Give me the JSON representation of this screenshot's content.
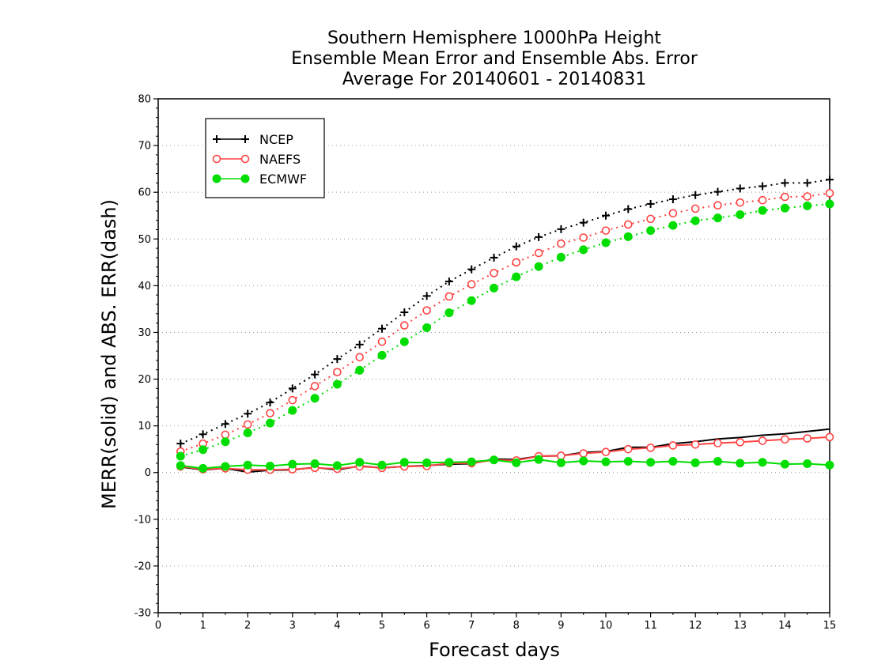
{
  "chart_data": {
    "type": "line",
    "title": [
      "Southern Hemisphere 1000hPa Height",
      "Ensemble Mean Error and Ensemble Abs. Error",
      "Average For 20140601 - 20140831"
    ],
    "xlabel": "Forecast days",
    "ylabel": "MERR(solid) and ABS. ERR(dash)",
    "xlim": [
      0,
      15
    ],
    "ylim": [
      -30,
      80
    ],
    "xticks": [
      0,
      1,
      2,
      3,
      4,
      5,
      6,
      7,
      8,
      9,
      10,
      11,
      12,
      13,
      14,
      15
    ],
    "yticks": [
      -30,
      -20,
      -10,
      0,
      10,
      20,
      30,
      40,
      50,
      60,
      70,
      80
    ],
    "grid": "horizontal dotted",
    "legend_position": "top-left",
    "x": [
      0.5,
      1,
      1.5,
      2,
      2.5,
      3,
      3.5,
      4,
      4.5,
      5,
      5.5,
      6,
      6.5,
      7,
      7.5,
      8,
      8.5,
      9,
      9.5,
      10,
      10.5,
      11,
      11.5,
      12,
      12.5,
      13,
      13.5,
      14,
      14.5,
      15
    ],
    "series": [
      {
        "name": "NCEP",
        "color": "#000000",
        "marker": "plus",
        "style": "dotted",
        "kind": "abs_error",
        "values": [
          6.2,
          8.2,
          10.4,
          12.6,
          15.0,
          18.0,
          21.0,
          24.3,
          27.4,
          30.8,
          34.3,
          37.8,
          40.9,
          43.5,
          46.0,
          48.4,
          50.4,
          52.1,
          53.5,
          55.0,
          56.4,
          57.5,
          58.5,
          59.4,
          60.1,
          60.8,
          61.3,
          62.0,
          62.0,
          62.7
        ]
      },
      {
        "name": "NAEFS",
        "color": "#ff4444",
        "marker": "open-circle",
        "style": "dotted",
        "kind": "abs_error",
        "values": [
          4.5,
          6.2,
          8.1,
          10.3,
          12.7,
          15.5,
          18.5,
          21.5,
          24.7,
          28.0,
          31.5,
          34.7,
          37.7,
          40.3,
          42.7,
          45.0,
          47.0,
          49.0,
          50.3,
          51.8,
          53.1,
          54.3,
          55.5,
          56.5,
          57.2,
          57.8,
          58.3,
          59.0,
          59.1,
          59.8
        ]
      },
      {
        "name": "ECMWF",
        "color": "#00dd00",
        "marker": "filled-circle",
        "style": "dotted",
        "kind": "abs_error",
        "values": [
          3.5,
          4.9,
          6.6,
          8.5,
          10.6,
          13.3,
          15.9,
          18.9,
          21.9,
          25.1,
          28.0,
          31.0,
          34.2,
          36.8,
          39.5,
          41.9,
          44.1,
          46.1,
          47.7,
          49.2,
          50.5,
          51.8,
          52.9,
          53.9,
          54.5,
          55.2,
          56.1,
          56.6,
          57.1,
          57.5
        ]
      },
      {
        "name": "NCEP",
        "color": "#000000",
        "marker": "none",
        "style": "solid",
        "kind": "mean_error",
        "values": [
          1.2,
          0.6,
          0.9,
          0.1,
          0.5,
          0.6,
          1.1,
          0.6,
          1.4,
          1.0,
          1.3,
          1.5,
          1.8,
          1.9,
          2.9,
          2.8,
          3.5,
          3.6,
          4.3,
          4.5,
          5.4,
          5.4,
          6.2,
          6.6,
          7.2,
          7.5,
          8.0,
          8.3,
          8.8,
          9.3
        ]
      },
      {
        "name": "NAEFS",
        "color": "#ff4444",
        "marker": "open-circle",
        "style": "solid",
        "kind": "mean_error",
        "values": [
          1.3,
          0.7,
          0.9,
          0.6,
          0.6,
          0.7,
          1.0,
          0.8,
          1.3,
          1.0,
          1.3,
          1.4,
          2.0,
          2.0,
          2.7,
          2.6,
          3.5,
          3.6,
          4.1,
          4.4,
          5.0,
          5.3,
          5.8,
          6.0,
          6.3,
          6.5,
          6.8,
          7.1,
          7.3,
          7.6
        ]
      },
      {
        "name": "ECMWF",
        "color": "#00dd00",
        "marker": "filled-circle",
        "style": "solid",
        "kind": "mean_error",
        "values": [
          1.5,
          0.9,
          1.3,
          1.6,
          1.4,
          1.8,
          1.9,
          1.5,
          2.2,
          1.6,
          2.2,
          2.1,
          2.2,
          2.3,
          2.7,
          2.1,
          2.8,
          2.1,
          2.5,
          2.3,
          2.4,
          2.2,
          2.4,
          2.1,
          2.4,
          2.0,
          2.2,
          1.8,
          1.9,
          1.6
        ]
      }
    ]
  }
}
